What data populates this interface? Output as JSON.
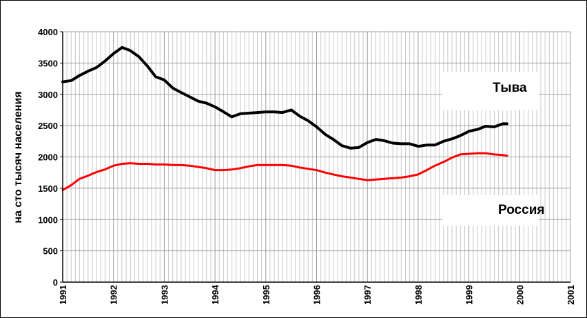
{
  "chart_data": {
    "type": "line",
    "title": "",
    "xlabel": "",
    "ylabel": "на сто тысяч населения",
    "xlim": [
      1991,
      2001
    ],
    "ylim": [
      0,
      4000
    ],
    "y_ticks": [
      0,
      500,
      1000,
      1500,
      2000,
      2500,
      3000,
      3500,
      4000
    ],
    "y_tick_labels": [
      "0",
      "500",
      "1000",
      "1500",
      "2000",
      "2500",
      "3000",
      "3500",
      "4000"
    ],
    "x_ticks": [
      1991,
      1992,
      1993,
      1994,
      1995,
      1996,
      1997,
      1998,
      1999,
      2000,
      2001
    ],
    "x_tick_labels": [
      "1991",
      "1992",
      "1993",
      "1994",
      "1995",
      "1996",
      "1997",
      "1998",
      "1999",
      "2000",
      "2001"
    ],
    "grid": true,
    "x_minor_per_year": 12,
    "series": [
      {
        "name": "Тыва",
        "color": "#000000",
        "x": [
          1991.0,
          1991.17,
          1991.33,
          1991.5,
          1991.67,
          1991.83,
          1992.0,
          1992.17,
          1992.33,
          1992.5,
          1992.67,
          1992.83,
          1993.0,
          1993.17,
          1993.33,
          1993.5,
          1993.67,
          1993.83,
          1994.0,
          1994.17,
          1994.33,
          1994.5,
          1994.67,
          1994.83,
          1995.0,
          1995.17,
          1995.33,
          1995.5,
          1995.67,
          1995.83,
          1996.0,
          1996.17,
          1996.33,
          1996.5,
          1996.67,
          1996.83,
          1997.0,
          1997.17,
          1997.33,
          1997.5,
          1997.67,
          1997.83,
          1998.0,
          1998.17,
          1998.33,
          1998.5,
          1998.67,
          1998.83,
          1999.0,
          1999.17,
          1999.33,
          1999.5,
          1999.67,
          1999.75
        ],
        "values": [
          3200,
          3220,
          3300,
          3370,
          3430,
          3530,
          3650,
          3750,
          3700,
          3600,
          3450,
          3280,
          3230,
          3100,
          3030,
          2960,
          2890,
          2860,
          2800,
          2720,
          2640,
          2690,
          2700,
          2710,
          2720,
          2720,
          2710,
          2750,
          2650,
          2580,
          2480,
          2360,
          2280,
          2180,
          2140,
          2150,
          2230,
          2280,
          2260,
          2220,
          2210,
          2210,
          2170,
          2190,
          2190,
          2250,
          2290,
          2340,
          2410,
          2440,
          2490,
          2480,
          2530,
          2530
        ]
      },
      {
        "name": "Россия",
        "color": "#ff0000",
        "x": [
          1991.0,
          1991.17,
          1991.33,
          1991.5,
          1991.67,
          1991.83,
          1992.0,
          1992.17,
          1992.33,
          1992.5,
          1992.67,
          1992.83,
          1993.0,
          1993.17,
          1993.33,
          1993.5,
          1993.67,
          1993.83,
          1994.0,
          1994.17,
          1994.33,
          1994.5,
          1994.67,
          1994.83,
          1995.0,
          1995.17,
          1995.33,
          1995.5,
          1995.67,
          1995.83,
          1996.0,
          1996.17,
          1996.33,
          1996.5,
          1996.67,
          1996.83,
          1997.0,
          1997.17,
          1997.33,
          1997.5,
          1997.67,
          1997.83,
          1998.0,
          1998.17,
          1998.33,
          1998.5,
          1998.67,
          1998.83,
          1999.0,
          1999.17,
          1999.33,
          1999.5,
          1999.67,
          1999.75
        ],
        "values": [
          1470,
          1550,
          1650,
          1700,
          1760,
          1800,
          1860,
          1890,
          1900,
          1890,
          1890,
          1880,
          1880,
          1870,
          1870,
          1860,
          1840,
          1820,
          1790,
          1790,
          1800,
          1820,
          1850,
          1870,
          1870,
          1870,
          1870,
          1860,
          1830,
          1810,
          1790,
          1750,
          1720,
          1690,
          1670,
          1650,
          1630,
          1640,
          1650,
          1660,
          1670,
          1690,
          1720,
          1790,
          1860,
          1920,
          1990,
          2040,
          2050,
          2060,
          2060,
          2040,
          2030,
          2020
        ]
      }
    ]
  }
}
